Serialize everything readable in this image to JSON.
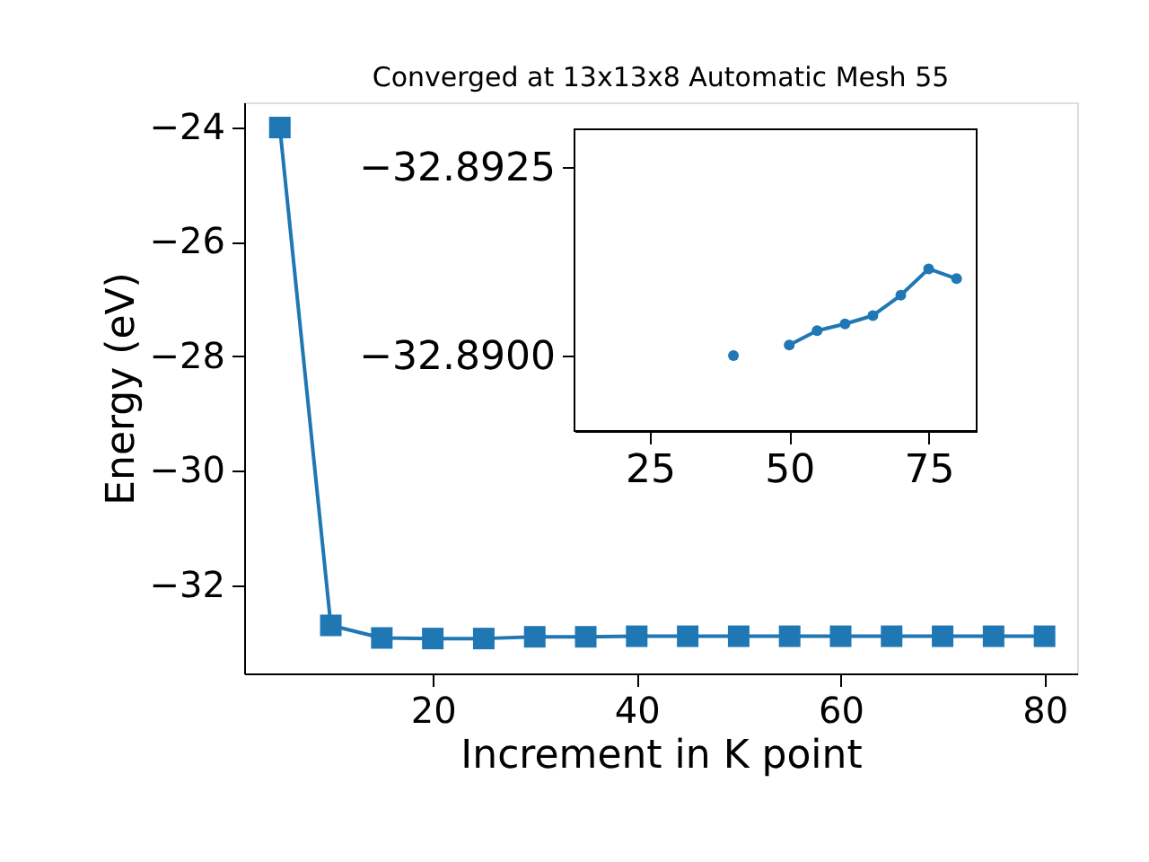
{
  "chart_data": [
    {
      "type": "line",
      "title": "Converged at 13x13x8 Automatic Mesh 55",
      "xlabel": "Increment in K point",
      "ylabel": "Energy (eV)",
      "marker": "square",
      "color": "#1f77b4",
      "x": [
        5,
        10,
        15,
        20,
        25,
        30,
        35,
        40,
        45,
        50,
        55,
        60,
        65,
        70,
        75,
        80
      ],
      "values": [
        -24.0,
        -32.7,
        -32.92,
        -32.93,
        -32.93,
        -32.9,
        -32.9,
        -32.89,
        -32.89,
        -32.89,
        -32.89,
        -32.89,
        -32.89,
        -32.89,
        -32.89,
        -32.89
      ],
      "xlim": [
        1.5,
        83.2
      ],
      "ylim": [
        -33.54,
        -23.56
      ],
      "xticks": [
        20,
        40,
        60,
        80
      ],
      "yticks": [
        -32,
        -30,
        -28,
        -26,
        -24
      ]
    },
    {
      "type": "line",
      "marker": "circle",
      "color": "#1f77b4",
      "x": [
        40,
        45,
        50,
        55,
        60,
        65,
        70,
        75,
        80
      ],
      "values": [
        -32.89,
        null,
        -32.89014,
        -32.89033,
        -32.89042,
        -32.89053,
        -32.8908,
        -32.89115,
        -32.89102
      ],
      "xlim": [
        11.5,
        83.6
      ],
      "ylim": [
        -32.889,
        -32.893
      ],
      "xticks": [
        25,
        50,
        75
      ],
      "yticks": [
        {
          "value": -32.8925,
          "label": "−32.8925"
        },
        {
          "value": -32.89,
          "label": "−32.8900"
        }
      ]
    }
  ]
}
